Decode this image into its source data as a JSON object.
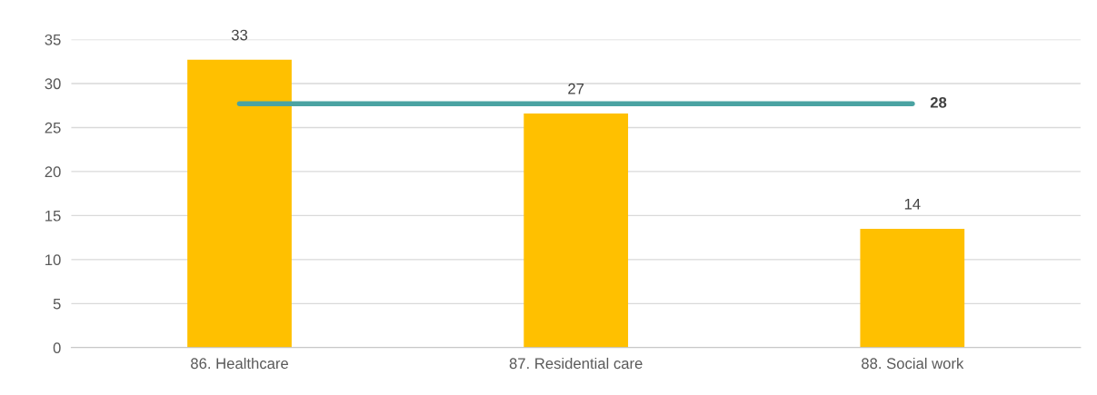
{
  "chart_data": {
    "type": "bar",
    "categories": [
      "86. Healthcare",
      "87. Residential care",
      "88. Social work"
    ],
    "series": [
      {
        "color": "#ffc000",
        "values": [
          32.7,
          26.6,
          13.5
        ],
        "value_labels": [
          "33",
          "27",
          "14"
        ]
      },
      {
        "type": "line",
        "color": "#4aa3a2",
        "values": [
          27.7,
          27.7,
          27.7
        ],
        "value_labels": [
          null,
          null,
          "28"
        ]
      }
    ],
    "ylim": [
      0,
      35
    ],
    "yticks": [
      0,
      5,
      10,
      15,
      20,
      25,
      30,
      35
    ],
    "grid": "y",
    "marker": "none",
    "line_style": "solid"
  }
}
